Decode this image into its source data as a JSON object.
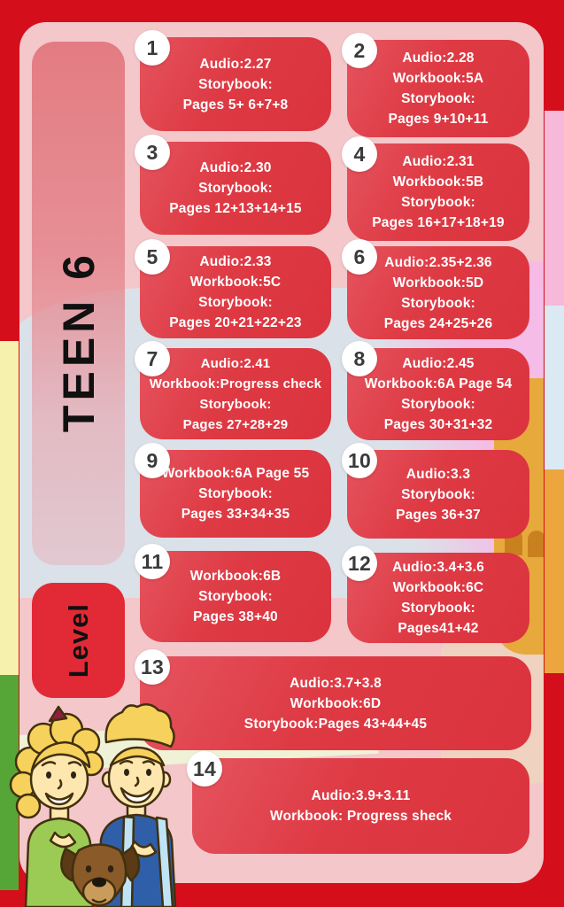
{
  "poster": {
    "title": "TEEN 6",
    "level_label": "Level"
  },
  "colors": {
    "background": "#d50e1c",
    "panel": "#f4c7cb",
    "card": "#de3a44",
    "sidebar": "#e2787e",
    "level_badge": "#e12a35",
    "card_text": "#ffffff",
    "number_text": "#3a3a3a"
  },
  "cards": [
    {
      "number": "1",
      "lines": [
        "Audio:2.27",
        "Storybook:",
        "Pages 5+ 6+7+8"
      ]
    },
    {
      "number": "2",
      "lines": [
        "Audio:2.28",
        "Workbook:5A",
        "Storybook:",
        "Pages 9+10+11"
      ]
    },
    {
      "number": "3",
      "lines": [
        "Audio:2.30",
        "Storybook:",
        "Pages 12+13+14+15"
      ]
    },
    {
      "number": "4",
      "lines": [
        "Audio:2.31",
        "Workbook:5B",
        "Storybook:",
        "Pages 16+17+18+19"
      ]
    },
    {
      "number": "5",
      "lines": [
        "Audio:2.33",
        "Workbook:5C",
        "Storybook:",
        "Pages 20+21+22+23"
      ]
    },
    {
      "number": "6",
      "lines": [
        "Audio:2.35+2.36",
        "Workbook:5D",
        "Storybook:",
        "Pages 24+25+26"
      ]
    },
    {
      "number": "7",
      "lines": [
        "Audio:2.41",
        "Workbook:Progress check",
        "Storybook:",
        "Pages 27+28+29"
      ]
    },
    {
      "number": "8",
      "lines": [
        "Audio:2.45",
        "Workbook:6A Page 54",
        "Storybook:",
        "Pages 30+31+32"
      ]
    },
    {
      "number": "9",
      "lines": [
        "Workbook:6A Page 55",
        "Storybook:",
        "Pages 33+34+35"
      ]
    },
    {
      "number": "10",
      "lines": [
        "Audio:3.3",
        "Storybook:",
        "Pages 36+37"
      ]
    },
    {
      "number": "11",
      "lines": [
        "Workbook:6B",
        "Storybook:",
        "Pages 38+40"
      ]
    },
    {
      "number": "12",
      "lines": [
        "Audio:3.4+3.6",
        "Workbook:6C",
        "Storybook:",
        "Pages41+42"
      ]
    },
    {
      "number": "13",
      "lines": [
        "Audio:3.7+3.8",
        "Workbook:6D",
        "Storybook:Pages 43+44+45"
      ]
    },
    {
      "number": "14",
      "lines": [
        "Audio:3.9+3.11",
        "Workbook:  Progress sheck"
      ]
    }
  ]
}
